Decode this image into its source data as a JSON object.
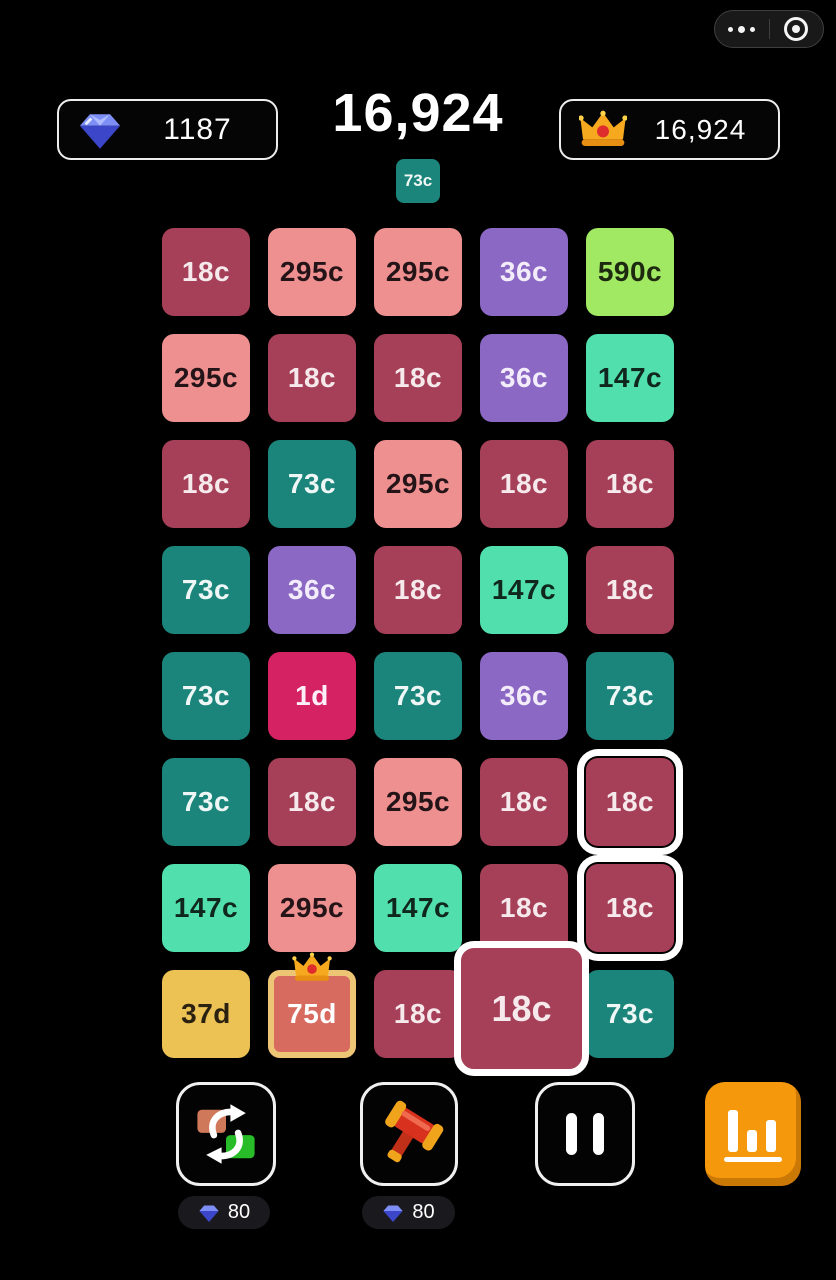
{
  "header": {
    "gems": "1187",
    "score": "16,924",
    "best": "16,924",
    "next_tile": {
      "label": "73c"
    }
  },
  "capsule": {
    "menu_icon": "more-dots-icon",
    "exit_icon": "record-circle-icon"
  },
  "icons": {
    "currency": "gem-icon",
    "best_score": "crown-icon",
    "tile_crown": "crown-icon",
    "tool_swap": "swap-tiles-icon",
    "tool_hammer": "hammer-icon",
    "tool_pause": "pause-icon",
    "tool_stats": "bar-chart-icon"
  },
  "grid": {
    "rows": 8,
    "cols": 5,
    "tiles": [
      {
        "label": "18c"
      },
      {
        "label": "295c"
      },
      {
        "label": "295c"
      },
      {
        "label": "36c"
      },
      {
        "label": "590c"
      },
      {
        "label": "295c"
      },
      {
        "label": "18c"
      },
      {
        "label": "18c"
      },
      {
        "label": "36c"
      },
      {
        "label": "147c"
      },
      {
        "label": "18c"
      },
      {
        "label": "73c"
      },
      {
        "label": "295c"
      },
      {
        "label": "18c"
      },
      {
        "label": "18c"
      },
      {
        "label": "73c"
      },
      {
        "label": "36c"
      },
      {
        "label": "18c"
      },
      {
        "label": "147c"
      },
      {
        "label": "18c"
      },
      {
        "label": "73c"
      },
      {
        "label": "1d"
      },
      {
        "label": "73c"
      },
      {
        "label": "36c"
      },
      {
        "label": "73c"
      },
      {
        "label": "73c"
      },
      {
        "label": "18c"
      },
      {
        "label": "295c"
      },
      {
        "label": "18c"
      },
      {
        "label": "18c",
        "selected": true
      },
      {
        "label": "147c"
      },
      {
        "label": "295c"
      },
      {
        "label": "147c"
      },
      {
        "label": "18c"
      },
      {
        "label": "18c",
        "selected": true
      },
      {
        "label": "37d"
      },
      {
        "label": "75d",
        "crowned": true
      },
      {
        "label": "18c"
      },
      {
        "label": "18c"
      },
      {
        "label": "73c"
      }
    ]
  },
  "drag_tile": {
    "label": "18c"
  },
  "toolbar": {
    "buttons": [
      {
        "name": "swap",
        "cost": "80"
      },
      {
        "name": "hammer",
        "cost": "80"
      },
      {
        "name": "pause"
      },
      {
        "name": "stats"
      }
    ]
  },
  "palette": {
    "18c": {
      "bg": "#a64059",
      "fg": "#f5e9ec"
    },
    "295c": {
      "bg": "#ee9090",
      "fg": "#241418"
    },
    "36c": {
      "bg": "#8a68c4",
      "fg": "#f3ecfa"
    },
    "590c": {
      "bg": "#a1e863",
      "fg": "#1d2a10"
    },
    "147c": {
      "bg": "#52dfae",
      "fg": "#0f271e"
    },
    "73c": {
      "bg": "#1b857b",
      "fg": "#eef7f5"
    },
    "1d": {
      "bg": "#d42263",
      "fg": "#fdeff5"
    },
    "37d": {
      "bg": "#edc255",
      "fg": "#2a2110"
    },
    "75d": {
      "bg": "#d76b60",
      "fg": "#ffffff",
      "border": "#ecc675"
    }
  },
  "colors": {
    "background": "#000000",
    "stats_orange": "#f6980b",
    "gem_blue": "#3c46c8",
    "crown_gold": "#f6a81f",
    "selection_white": "#ffffff"
  }
}
